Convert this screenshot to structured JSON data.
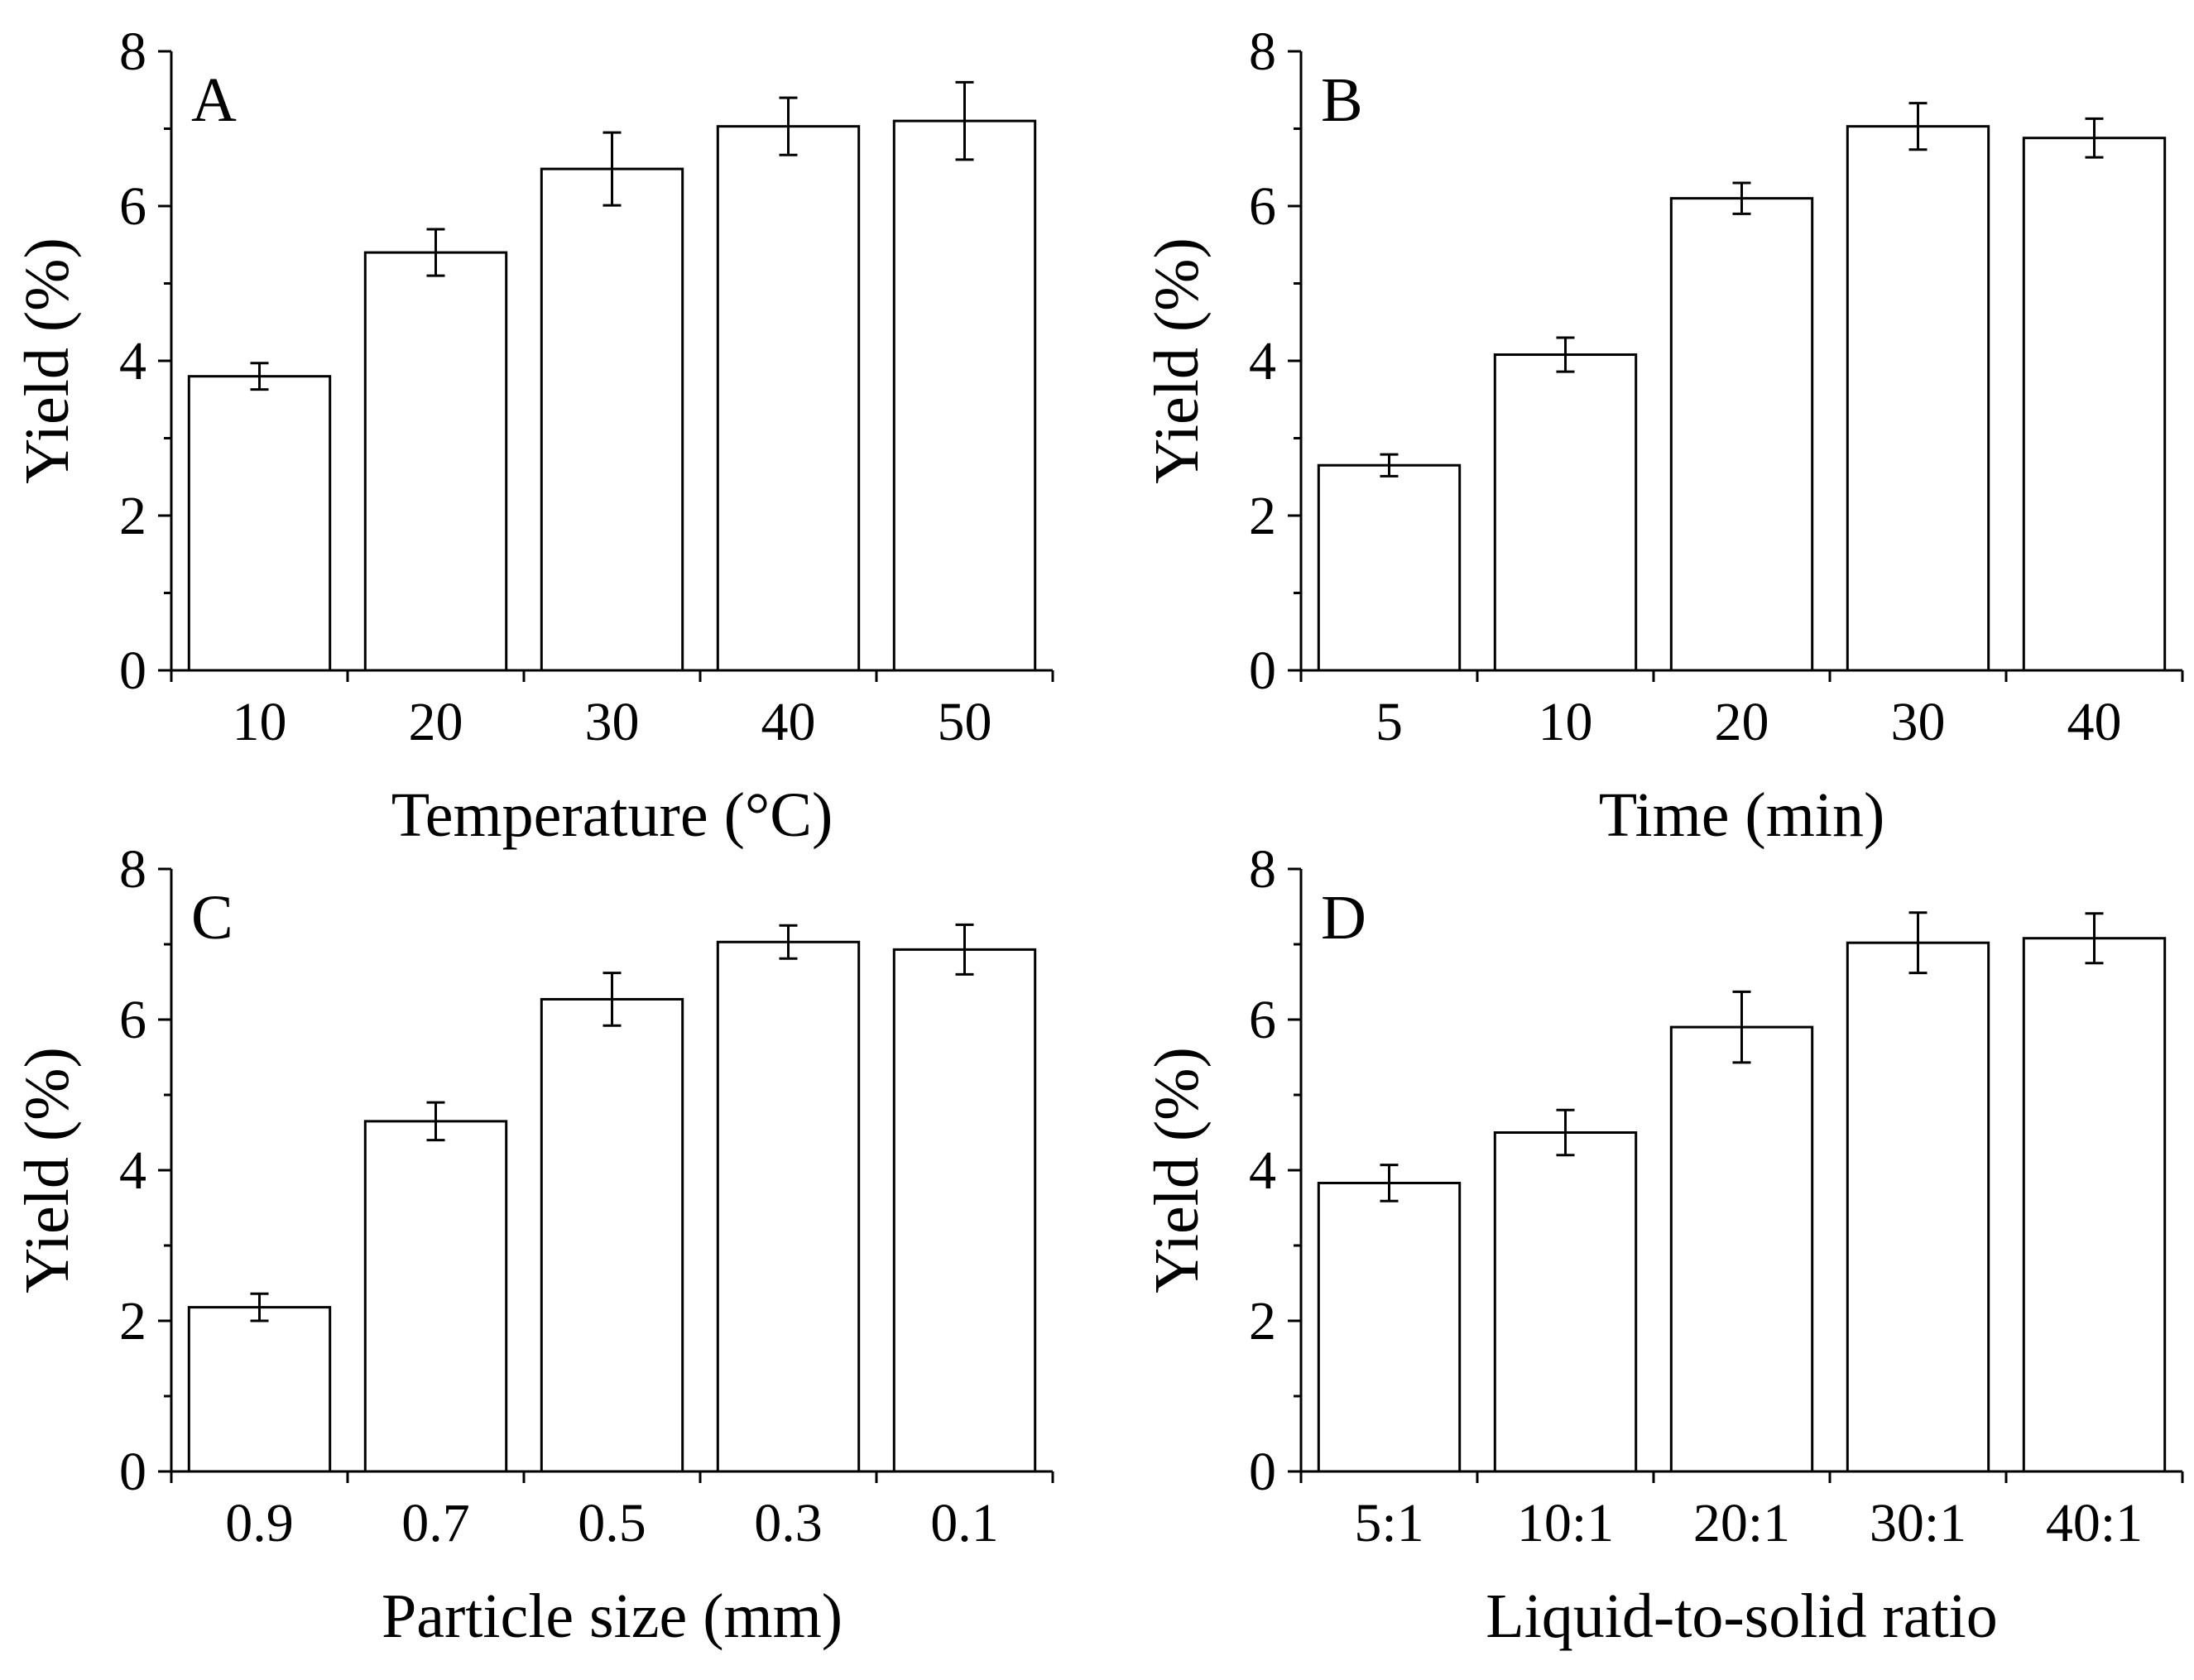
{
  "chart_data": [
    {
      "type": "bar",
      "panel": "A",
      "categories": [
        "10",
        "20",
        "30",
        "40",
        "50"
      ],
      "values": [
        3.8,
        5.4,
        6.48,
        7.03,
        7.1
      ],
      "errors": [
        0.17,
        0.3,
        0.47,
        0.37,
        0.5
      ],
      "xlabel": "Temperature (°C)",
      "ylabel": "Yield (%)",
      "ylim": [
        0,
        8
      ],
      "yticks": [
        "0",
        "2",
        "4",
        "6",
        "8"
      ]
    },
    {
      "type": "bar",
      "panel": "B",
      "categories": [
        "5",
        "10",
        "20",
        "30",
        "40"
      ],
      "values": [
        2.65,
        4.08,
        6.1,
        7.03,
        6.88
      ],
      "errors": [
        0.14,
        0.22,
        0.2,
        0.3,
        0.25
      ],
      "xlabel": "Time (min)",
      "ylabel": "Yield (%)",
      "ylim": [
        0,
        8
      ],
      "yticks": [
        "0",
        "2",
        "4",
        "6",
        "8"
      ]
    },
    {
      "type": "bar",
      "panel": "C",
      "categories": [
        "0.9",
        "0.7",
        "0.5",
        "0.3",
        "0.1"
      ],
      "values": [
        2.18,
        4.65,
        6.27,
        7.03,
        6.93
      ],
      "errors": [
        0.18,
        0.25,
        0.35,
        0.22,
        0.33
      ],
      "xlabel": "Particle size (mm)",
      "ylabel": "Yield (%)",
      "ylim": [
        0,
        8
      ],
      "yticks": [
        "0",
        "2",
        "4",
        "6",
        "8"
      ]
    },
    {
      "type": "bar",
      "panel": "D",
      "categories": [
        "5:1",
        "10:1",
        "20:1",
        "30:1",
        "40:1"
      ],
      "values": [
        3.83,
        4.5,
        5.9,
        7.02,
        7.08
      ],
      "errors": [
        0.24,
        0.3,
        0.47,
        0.4,
        0.33
      ],
      "xlabel": "Liquid-to-solid ratio",
      "ylabel": "Yield (%)",
      "ylim": [
        0,
        8
      ],
      "yticks": [
        "0",
        "2",
        "4",
        "6",
        "8"
      ]
    }
  ]
}
